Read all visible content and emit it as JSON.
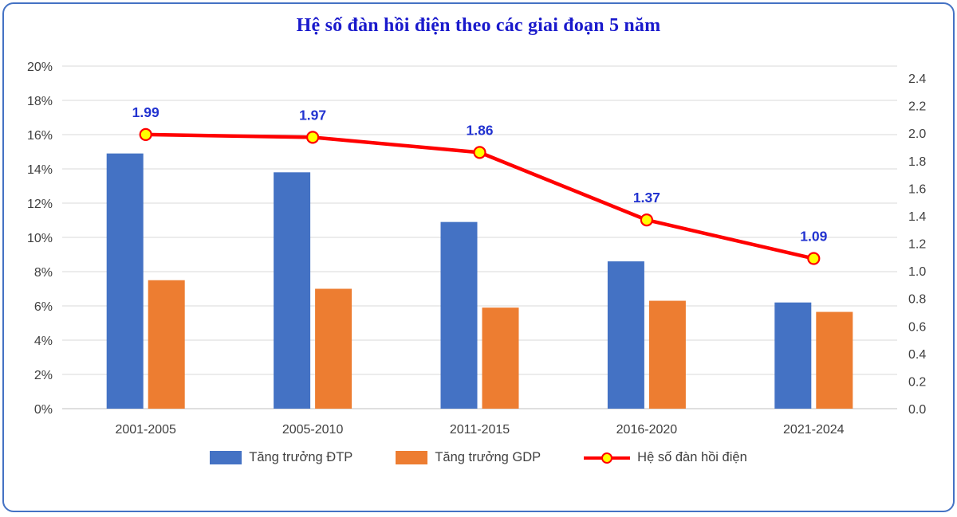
{
  "chart_data": {
    "type": "combo",
    "title": "Hệ số đàn hồi điện theo các giai đoạn 5 năm",
    "categories": [
      "2001-2005",
      "2005-2010",
      "2011-2015",
      "2016-2020",
      "2021-2024"
    ],
    "series": [
      {
        "name": "Tăng trưởng ĐTP",
        "type": "bar",
        "axis": "left",
        "color": "#4472C4",
        "values": [
          14.9,
          13.8,
          10.9,
          8.6,
          6.2
        ]
      },
      {
        "name": "Tăng trưởng GDP",
        "type": "bar",
        "axis": "left",
        "color": "#ED7D31",
        "values": [
          7.5,
          7.0,
          5.9,
          6.3,
          5.65
        ]
      },
      {
        "name": "Hệ số đàn hồi điện",
        "type": "line",
        "axis": "right",
        "color": "#FF0000",
        "marker_fill": "#FFFF00",
        "values": [
          1.99,
          1.97,
          1.86,
          1.37,
          1.09
        ],
        "data_labels": [
          "1.99",
          "1.97",
          "1.86",
          "1.37",
          "1.09"
        ]
      }
    ],
    "left_axis": {
      "min": 0,
      "max": 20,
      "step": 2,
      "labels": [
        "0%",
        "2%",
        "4%",
        "6%",
        "8%",
        "10%",
        "12%",
        "14%",
        "16%",
        "18%",
        "20%"
      ]
    },
    "right_axis": {
      "min": 0.0,
      "max": 2.4,
      "step": 0.2,
      "labels": [
        "0.0",
        "0.2",
        "0.4",
        "0.6",
        "0.8",
        "1.0",
        "1.2",
        "1.4",
        "1.6",
        "1.8",
        "2.0",
        "2.2",
        "2.4"
      ]
    },
    "grid": true,
    "legend_position": "bottom"
  },
  "colors": {
    "border": "#4472C4",
    "title": "#1a1acc",
    "data_label": "#2233d0",
    "grid": "#d9d9d9",
    "axis_line": "#bfbfbf",
    "axis_text": "#3f3f3f",
    "background": "#ffffff"
  }
}
